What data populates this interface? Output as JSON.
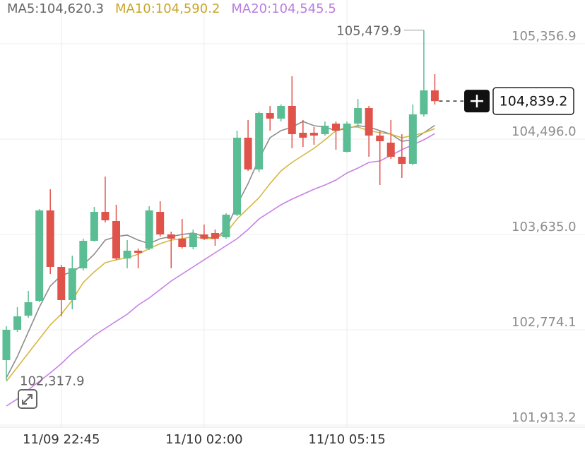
{
  "chart_data": {
    "type": "candlestick",
    "categories": [
      null,
      null,
      null,
      null,
      null,
      "11/09 22:45",
      null,
      null,
      null,
      null,
      null,
      null,
      null,
      null,
      null,
      null,
      null,
      null,
      "11/10 02:00",
      null,
      null,
      null,
      null,
      null,
      null,
      null,
      null,
      null,
      null,
      null,
      null,
      "11/10 05:15",
      null,
      null,
      null,
      null,
      null,
      null,
      null,
      null
    ],
    "open": [
      102500.0,
      102774.2,
      102901.8,
      103035.7,
      103852.0,
      103341.8,
      103042.1,
      103329.0,
      103577.7,
      103839.2,
      103756.3,
      103418.3,
      103488.5,
      103507.6,
      103839.2,
      103635.1,
      103596.9,
      103520.3,
      103635.1,
      103647.9,
      103609.6,
      103813.7,
      104508.8,
      104221.8,
      104732.0,
      104681.0,
      104795.7,
      104553.4,
      104553.4,
      104540.7,
      104636.3,
      104381.2,
      104636.3,
      104776.6,
      104527.9,
      104464.1,
      104336.6,
      104272.8,
      104719.2,
      104936.0
    ],
    "high": [
      102806.1,
      102978.3,
      103125.0,
      103864.7,
      104043.3,
      103360.9,
      103443.8,
      103596.9,
      103883.8,
      104158.0,
      103903.0,
      103584.1,
      103507.6,
      103890.2,
      103934.9,
      103660.6,
      103775.4,
      103679.8,
      103724.4,
      103679.8,
      103826.4,
      104572.6,
      104668.2,
      104744.7,
      104795.7,
      104808.5,
      105063.6,
      104668.2,
      104604.4,
      104655.5,
      104655.5,
      104655.5,
      104859.5,
      104795.7,
      104572.6,
      104668.2,
      104540.7,
      104808.5,
      105479.9,
      105082.7
    ],
    "low": [
      102317.9,
      102755.1,
      102882.6,
      103022.9,
      103278.0,
      102895.4,
      102959.2,
      103309.9,
      103571.4,
      103743.5,
      103405.6,
      103329.0,
      103329.0,
      103494.8,
      103616.0,
      103329.0,
      103507.6,
      103501.2,
      103584.1,
      103533.1,
      103596.9,
      103800.9,
      104209.1,
      104196.3,
      104572.6,
      104655.5,
      104413.1,
      104425.9,
      104445.0,
      104527.9,
      104400.4,
      104374.9,
      104604.4,
      104336.6,
      104081.5,
      104317.5,
      104145.3,
      104260.1,
      104700.1,
      104808.5
    ],
    "close": [
      102774.2,
      102895.4,
      103022.9,
      103852.0,
      103341.8,
      103042.1,
      103329.0,
      103577.7,
      103839.2,
      103762.7,
      103418.3,
      103488.5,
      103469.3,
      103852.0,
      103635.1,
      103596.9,
      103520.3,
      103647.9,
      103596.9,
      103596.9,
      103813.7,
      104508.8,
      104221.8,
      104732.0,
      104681.0,
      104795.7,
      104540.7,
      104508.8,
      104527.9,
      104617.2,
      104572.6,
      104636.3,
      104776.6,
      104527.9,
      104476.9,
      104336.6,
      104272.8,
      104719.2,
      104936.0,
      104839.2
    ],
    "up_color": "#5bbd93",
    "down_color": "#e0534b",
    "overlays": [
      {
        "name": "MA5:104,620.3",
        "color": "#8d8d8d",
        "label_color": "#666666",
        "values": [
          102340.6,
          102531.9,
          102755.1,
          102978.3,
          103169.6,
          103265.3,
          103297.2,
          103360.9,
          103456.6,
          103584.1,
          103616.0,
          103628.8,
          103584.1,
          103552.2,
          103596.9,
          103616.0,
          103635.1,
          103647.9,
          103616.0,
          103596.9,
          103679.8,
          103903.0,
          104094.3,
          104317.5,
          104508.8,
          104572.6,
          104604.4,
          104655.5,
          104617.2,
          104604.4,
          104572.6,
          104591.7,
          104617.2,
          104604.4,
          104572.6,
          104540.7,
          104476.9,
          104489.7,
          104553.4,
          104620.3
        ]
      },
      {
        "name": "MA10:104,590.2",
        "color": "#d6b73f",
        "label_color": "#c9a62a",
        "values": [
          102308.7,
          102436.3,
          102563.8,
          102691.3,
          102818.9,
          102914.5,
          103042.1,
          103201.5,
          103297.2,
          103380.1,
          103405.6,
          103424.7,
          103456.6,
          103507.6,
          103552.2,
          103584.1,
          103596.9,
          103616.0,
          103596.9,
          103596.9,
          103647.9,
          103775.4,
          103871.1,
          103966.7,
          104094.3,
          104209.1,
          104285.6,
          104349.4,
          104413.1,
          104489.7,
          104572.6,
          104604.4,
          104604.4,
          104572.6,
          104553.4,
          104540.7,
          104508.8,
          104527.9,
          104553.4,
          104590.2
        ]
      },
      {
        "name": "MA20:104,545.5",
        "color": "#c681e6",
        "label_color": "#b97ee0",
        "values": [
          102085.5,
          102149.3,
          102232.2,
          102308.7,
          102385.2,
          102468.1,
          102563.8,
          102640.3,
          102723.2,
          102787.0,
          102850.8,
          102914.5,
          102997.4,
          103061.2,
          103137.7,
          103214.3,
          103278.0,
          103341.8,
          103405.6,
          103469.3,
          103533.1,
          103596.9,
          103679.8,
          103775.4,
          103839.2,
          103903.0,
          103954.0,
          103998.6,
          104043.3,
          104081.5,
          104126.2,
          104189.9,
          104234.6,
          104285.6,
          104298.3,
          104349.4,
          104400.4,
          104445.0,
          104489.7,
          104545.5
        ]
      }
    ],
    "ylim": [
      101894.1,
      105752.3
    ],
    "yticks": [
      {
        "value": 101913.2,
        "label": "101,913.2"
      },
      {
        "value": 102774.1,
        "label": "102,774.1"
      },
      {
        "value": 103635.0,
        "label": "103,635.0"
      },
      {
        "value": 104496.0,
        "label": "104,496.0"
      },
      {
        "value": 105356.9,
        "label": "105,356.9"
      }
    ],
    "grid": true,
    "high_label": "105,479.9",
    "low_label": "102,317.9",
    "last_price_label": "104,839.2"
  }
}
